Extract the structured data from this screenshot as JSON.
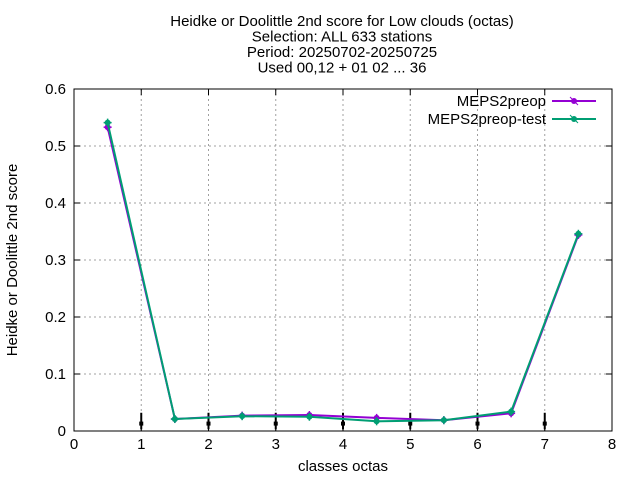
{
  "chart_data": {
    "type": "line",
    "title": [
      "Heidke or Doolittle 2nd score  for Low clouds (octas)",
      "Selection: ALL    633 stations",
      "Period: 20250702-20250725",
      "Used 00,12 + 01 02 ... 36"
    ],
    "xlabel": "classes octas",
    "ylabel": "Heidke or Doolittle 2nd score",
    "xlim": [
      0,
      8
    ],
    "ylim": [
      0,
      0.6
    ],
    "xticks": [
      0,
      1,
      2,
      3,
      4,
      5,
      6,
      7,
      8
    ],
    "yticks": [
      0,
      0.1,
      0.2,
      0.3,
      0.4,
      0.5,
      0.6
    ],
    "xtick_labels": [
      "0",
      "1",
      "2",
      "3",
      "4",
      "5",
      "6",
      "7",
      "8"
    ],
    "ytick_labels": [
      "0",
      "0.1",
      "0.2",
      "0.3",
      "0.4",
      "0.5",
      "0.6"
    ],
    "grid": true,
    "legend_position": "top-right",
    "x": [
      0.5,
      1.5,
      2.5,
      3.5,
      4.5,
      5.5,
      6.5,
      7.5
    ],
    "series": [
      {
        "name": "MEPS2preop",
        "color": "#9400d3",
        "values": [
          0.533,
          0.021,
          0.027,
          0.028,
          0.023,
          0.019,
          0.031,
          0.344
        ]
      },
      {
        "name": "MEPS2preop-test",
        "color": "#009e73",
        "values": [
          0.541,
          0.021,
          0.026,
          0.025,
          0.017,
          0.019,
          0.034,
          0.346
        ]
      }
    ],
    "error_bars": {
      "color": "#000000",
      "x": [
        1,
        2,
        3,
        4,
        5,
        6,
        7
      ],
      "center": [
        0.013,
        0.013,
        0.013,
        0.013,
        0.013,
        0.013,
        0.013
      ],
      "low": [
        0.003,
        0.003,
        0.003,
        0.003,
        0.003,
        0.003,
        0.003
      ],
      "high": [
        0.032,
        0.032,
        0.032,
        0.032,
        0.032,
        0.032,
        0.032
      ]
    }
  }
}
